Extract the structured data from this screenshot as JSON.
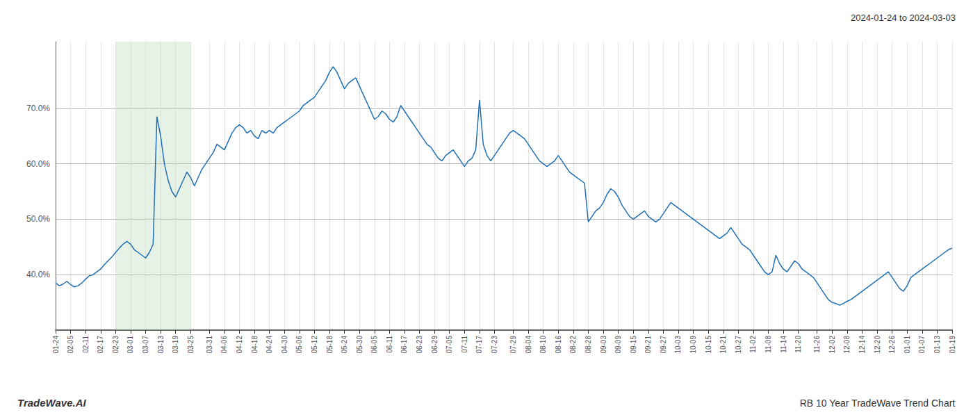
{
  "chart_data": {
    "type": "line",
    "title": "2024-01-24 to 2024-03-03",
    "annotations": [
      "TradeWave.AI",
      "RB 10 Year TradeWave Trend Chart"
    ],
    "color": "#1f6fb5",
    "grid": true,
    "ylim": [
      30,
      82
    ],
    "yticks": [
      {
        "value": 40,
        "label": "40.0%"
      },
      {
        "value": 50,
        "label": "50.0%"
      },
      {
        "value": 60,
        "label": "60.0%"
      },
      {
        "value": 70,
        "label": "70.0%"
      }
    ],
    "highlight": {
      "start": "02-23",
      "end": "03-25",
      "color": "#b8dbb8"
    },
    "categories": [
      "01-24",
      null,
      null,
      null,
      "02-05",
      null,
      null,
      null,
      "02-11",
      null,
      null,
      null,
      "02-17",
      null,
      null,
      null,
      "02-23",
      null,
      null,
      null,
      "03-01",
      null,
      null,
      null,
      "03-07",
      null,
      null,
      null,
      "03-13",
      null,
      null,
      null,
      "03-19",
      null,
      null,
      null,
      "03-25",
      null,
      null,
      null,
      null,
      "03-31",
      null,
      null,
      null,
      "04-06",
      null,
      null,
      null,
      "04-12",
      null,
      null,
      null,
      "04-18",
      null,
      null,
      null,
      "04-24",
      null,
      null,
      null,
      "04-30",
      null,
      null,
      null,
      "05-06",
      null,
      null,
      null,
      "05-12",
      null,
      null,
      null,
      "05-18",
      null,
      null,
      null,
      "05-24",
      null,
      null,
      null,
      "05-30",
      null,
      null,
      null,
      "06-05",
      null,
      null,
      null,
      "06-11",
      null,
      null,
      null,
      "06-17",
      null,
      null,
      null,
      "06-23",
      null,
      null,
      null,
      "06-29",
      null,
      null,
      null,
      "07-05",
      null,
      null,
      null,
      "07-11",
      null,
      null,
      null,
      "07-17",
      null,
      null,
      null,
      "07-23",
      null,
      null,
      null,
      null,
      "07-29",
      null,
      null,
      null,
      "08-04",
      null,
      null,
      null,
      "08-10",
      null,
      null,
      null,
      "08-16",
      null,
      null,
      null,
      "08-22",
      null,
      null,
      null,
      "08-28",
      null,
      null,
      null,
      "09-03",
      null,
      null,
      null,
      "09-09",
      null,
      null,
      null,
      "09-15",
      null,
      null,
      null,
      "09-21",
      null,
      null,
      null,
      "09-27",
      null,
      null,
      null,
      "10-03",
      null,
      null,
      null,
      "10-09",
      null,
      null,
      null,
      "10-15",
      null,
      null,
      null,
      "10-21",
      null,
      null,
      null,
      "10-27",
      null,
      null,
      null,
      "11-02",
      null,
      null,
      null,
      "11-08",
      null,
      null,
      null,
      "11-14",
      null,
      null,
      null,
      "11-20",
      null,
      null,
      null,
      null,
      "11-26",
      null,
      null,
      null,
      "12-02",
      null,
      null,
      null,
      "12-08",
      null,
      null,
      null,
      "12-14",
      null,
      null,
      null,
      "12-20",
      null,
      null,
      null,
      "12-26",
      null,
      null,
      null,
      "01-01",
      null,
      null,
      null,
      "01-07",
      null,
      null,
      null,
      "01-13",
      null,
      null,
      null,
      "01-19"
    ],
    "values": [
      38.5,
      38.0,
      38.3,
      38.8,
      38.2,
      37.8,
      38.0,
      38.5,
      39.2,
      39.8,
      40.0,
      40.5,
      41.0,
      41.8,
      42.5,
      43.2,
      44.0,
      44.8,
      45.5,
      46.0,
      45.5,
      44.5,
      44.0,
      43.5,
      43.0,
      44.0,
      45.5,
      68.5,
      65.0,
      60.0,
      57.0,
      55.0,
      54.0,
      55.5,
      57.0,
      58.5,
      57.5,
      56.0,
      57.5,
      59.0,
      60.0,
      61.0,
      62.0,
      63.5,
      63.0,
      62.5,
      64.0,
      65.5,
      66.5,
      67.0,
      66.5,
      65.5,
      66.0,
      65.0,
      64.5,
      66.0,
      65.5,
      66.0,
      65.5,
      66.5,
      67.0,
      67.5,
      68.0,
      68.5,
      69.0,
      69.5,
      70.5,
      71.0,
      71.5,
      72.0,
      73.0,
      74.0,
      75.0,
      76.5,
      77.5,
      76.5,
      75.0,
      73.5,
      74.5,
      75.0,
      75.5,
      74.0,
      72.5,
      71.0,
      69.5,
      68.0,
      68.5,
      69.5,
      69.0,
      68.0,
      67.5,
      68.5,
      70.5,
      69.5,
      68.5,
      67.5,
      66.5,
      65.5,
      64.5,
      63.5,
      63.0,
      62.0,
      61.0,
      60.5,
      61.5,
      62.0,
      62.5,
      61.5,
      60.5,
      59.5,
      60.5,
      61.0,
      62.5,
      71.5,
      63.5,
      61.5,
      60.5,
      61.5,
      62.5,
      63.5,
      64.5,
      65.5,
      66.0,
      65.5,
      65.0,
      64.5,
      63.5,
      62.5,
      61.5,
      60.5,
      60.0,
      59.5,
      60.0,
      60.5,
      61.5,
      60.5,
      59.5,
      58.5,
      58.0,
      57.5,
      57.0,
      56.5,
      49.5,
      50.5,
      51.5,
      52.0,
      53.0,
      54.5,
      55.5,
      55.0,
      54.0,
      52.5,
      51.5,
      50.5,
      50.0,
      50.5,
      51.0,
      51.5,
      50.5,
      50.0,
      49.5,
      50.0,
      51.0,
      52.0,
      53.0,
      52.5,
      52.0,
      51.5,
      51.0,
      50.5,
      50.0,
      49.5,
      49.0,
      48.5,
      48.0,
      47.5,
      47.0,
      46.5,
      47.0,
      47.5,
      48.5,
      47.5,
      46.5,
      45.5,
      45.0,
      44.5,
      43.5,
      42.5,
      41.5,
      40.5,
      40.0,
      40.5,
      43.5,
      42.0,
      41.0,
      40.5,
      41.5,
      42.5,
      42.0,
      41.0,
      40.5,
      40.0,
      39.5,
      38.5,
      37.5,
      36.5,
      35.5,
      35.0,
      34.8,
      34.5,
      34.8,
      35.2,
      35.5,
      36.0,
      36.5,
      37.0,
      37.5,
      38.0,
      38.5,
      39.0,
      39.5,
      40.0,
      40.5,
      39.5,
      38.5,
      37.5,
      37.0,
      38.0,
      39.5,
      40.0,
      40.5,
      41.0,
      41.5,
      42.0,
      42.5,
      43.0,
      43.5,
      44.0,
      44.5,
      44.8
    ]
  }
}
